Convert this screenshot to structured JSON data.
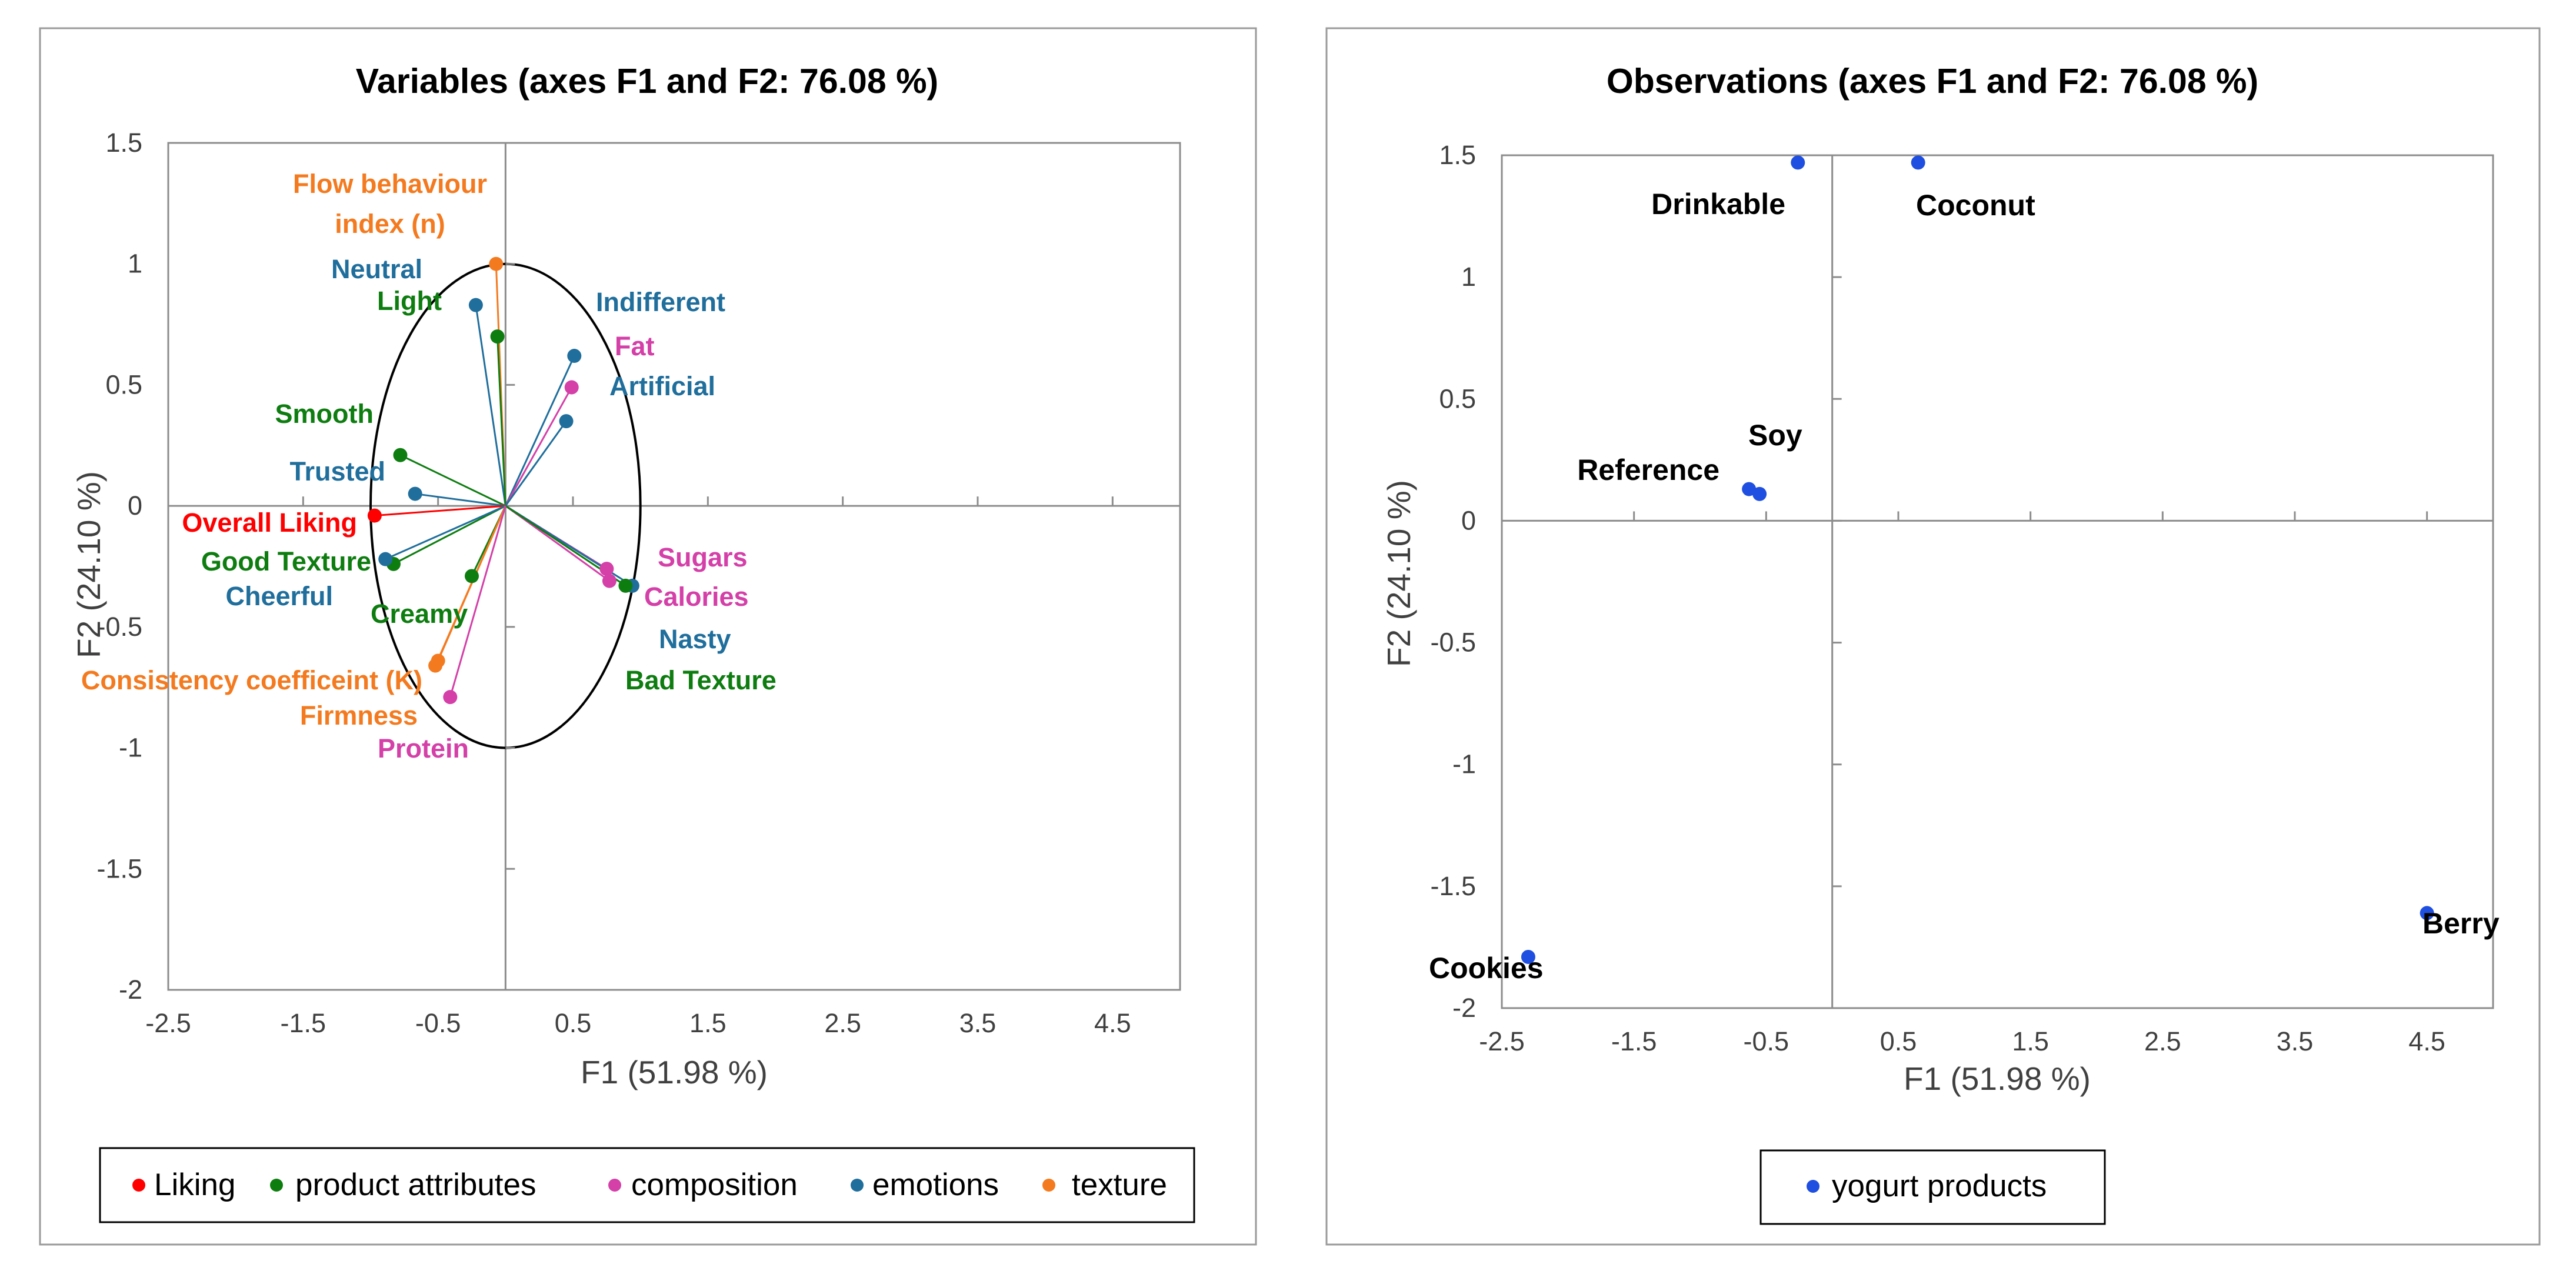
{
  "chart_data": [
    {
      "type": "scatter",
      "title": "Variables (axes F1 and F2: 76.08 %)",
      "xlabel": "F1 (51.98 %)",
      "ylabel": "F2 (24.10 %)",
      "xlim": [
        -2.5,
        5
      ],
      "ylim": [
        -2,
        1.5
      ],
      "xticks": [
        "-2.5",
        "-1.5",
        "-0.5",
        "0.5",
        "1.5",
        "2.5",
        "3.5",
        "4.5"
      ],
      "xtick_values": [
        -2.5,
        -1.5,
        -0.5,
        0.5,
        1.5,
        2.5,
        3.5,
        4.5
      ],
      "yticks": [
        "-2",
        "-1.5",
        "-1",
        "-0.5",
        "0",
        "0.5",
        "1",
        "1.5"
      ],
      "ytick_values": [
        -2,
        -1.5,
        -1,
        -0.5,
        0,
        0.5,
        1,
        1.5
      ],
      "correlation_circle": true,
      "vectors_from_origin": true,
      "legend": [
        {
          "name": "Liking",
          "color": "#ff0000"
        },
        {
          "name": "product attributes",
          "color": "#0e7d10"
        },
        {
          "name": "composition",
          "color": "#d43fa8"
        },
        {
          "name": "emotions",
          "color": "#1f6e9c"
        },
        {
          "name": "texture",
          "color": "#f47a1f"
        }
      ],
      "points": [
        {
          "label": "Flow behaviour",
          "label2": "index (n)",
          "group": "texture",
          "x": -0.07,
          "y": 1.0
        },
        {
          "label": "Neutral",
          "group": "emotions",
          "x": -0.22,
          "y": 0.83
        },
        {
          "label": "Light",
          "group": "product attributes",
          "x": -0.06,
          "y": 0.7
        },
        {
          "label": "Indifferent",
          "group": "emotions",
          "x": 0.51,
          "y": 0.62
        },
        {
          "label": "Fat",
          "group": "composition",
          "x": 0.49,
          "y": 0.49
        },
        {
          "label": "Artificial",
          "group": "emotions",
          "x": 0.45,
          "y": 0.35
        },
        {
          "label": "Smooth",
          "group": "product attributes",
          "x": -0.78,
          "y": 0.21
        },
        {
          "label": "Trusted",
          "group": "emotions",
          "x": -0.67,
          "y": 0.05
        },
        {
          "label": "Overall Liking",
          "group": "Liking",
          "x": -0.97,
          "y": -0.04
        },
        {
          "label": "Good Texture",
          "group": "product attributes",
          "x": -0.83,
          "y": -0.24
        },
        {
          "label": "Cheerful",
          "group": "emotions",
          "x": -0.89,
          "y": -0.22
        },
        {
          "label": "Creamy",
          "group": "product attributes",
          "x": -0.25,
          "y": -0.29
        },
        {
          "label": "Sugars",
          "group": "composition",
          "x": 0.75,
          "y": -0.26
        },
        {
          "label": "Calories",
          "group": "composition",
          "x": 0.77,
          "y": -0.31
        },
        {
          "label": "Nasty",
          "group": "emotions",
          "x": 0.94,
          "y": -0.33
        },
        {
          "label": "Bad Texture",
          "group": "product attributes",
          "x": 0.89,
          "y": -0.33
        },
        {
          "label": "Consistency coefficeint (K)",
          "group": "texture",
          "x": -0.52,
          "y": -0.66
        },
        {
          "label": "Firmness",
          "group": "texture",
          "x": -0.5,
          "y": -0.64
        },
        {
          "label": "Protein",
          "group": "composition",
          "x": -0.41,
          "y": -0.79
        }
      ]
    },
    {
      "type": "scatter",
      "title": "Observations (axes F1 and F2: 76.08 %)",
      "xlabel": "F1 (51.98 %)",
      "ylabel": "F2 (24.10 %)",
      "xlim": [
        -2.5,
        5
      ],
      "ylim": [
        -2,
        1.5
      ],
      "xticks": [
        "-2.5",
        "-1.5",
        "-0.5",
        "0.5",
        "1.5",
        "2.5",
        "3.5",
        "4.5"
      ],
      "xtick_values": [
        -2.5,
        -1.5,
        -0.5,
        0.5,
        1.5,
        2.5,
        3.5,
        4.5
      ],
      "yticks": [
        "-2",
        "-1.5",
        "-1",
        "-0.5",
        "0",
        "0.5",
        "1",
        "1.5"
      ],
      "ytick_values": [
        -2,
        -1.5,
        -1,
        -0.5,
        0,
        0.5,
        1,
        1.5
      ],
      "legend": [
        {
          "name": "yogurt products",
          "color": "#1f4fe0"
        }
      ],
      "points": [
        {
          "label": "Drinkable",
          "group": "yogurt products",
          "x": -0.26,
          "y": 1.47
        },
        {
          "label": "Coconut",
          "group": "yogurt products",
          "x": 0.65,
          "y": 1.47
        },
        {
          "label": "Soy",
          "group": "yogurt products",
          "x": -0.55,
          "y": 0.11
        },
        {
          "label": "Reference",
          "group": "yogurt products",
          "x": -0.63,
          "y": 0.13
        },
        {
          "label": "Berry",
          "group": "yogurt products",
          "x": 4.5,
          "y": -1.61
        },
        {
          "label": "Cookies",
          "group": "yogurt products",
          "x": -2.3,
          "y": -1.79
        }
      ]
    }
  ]
}
